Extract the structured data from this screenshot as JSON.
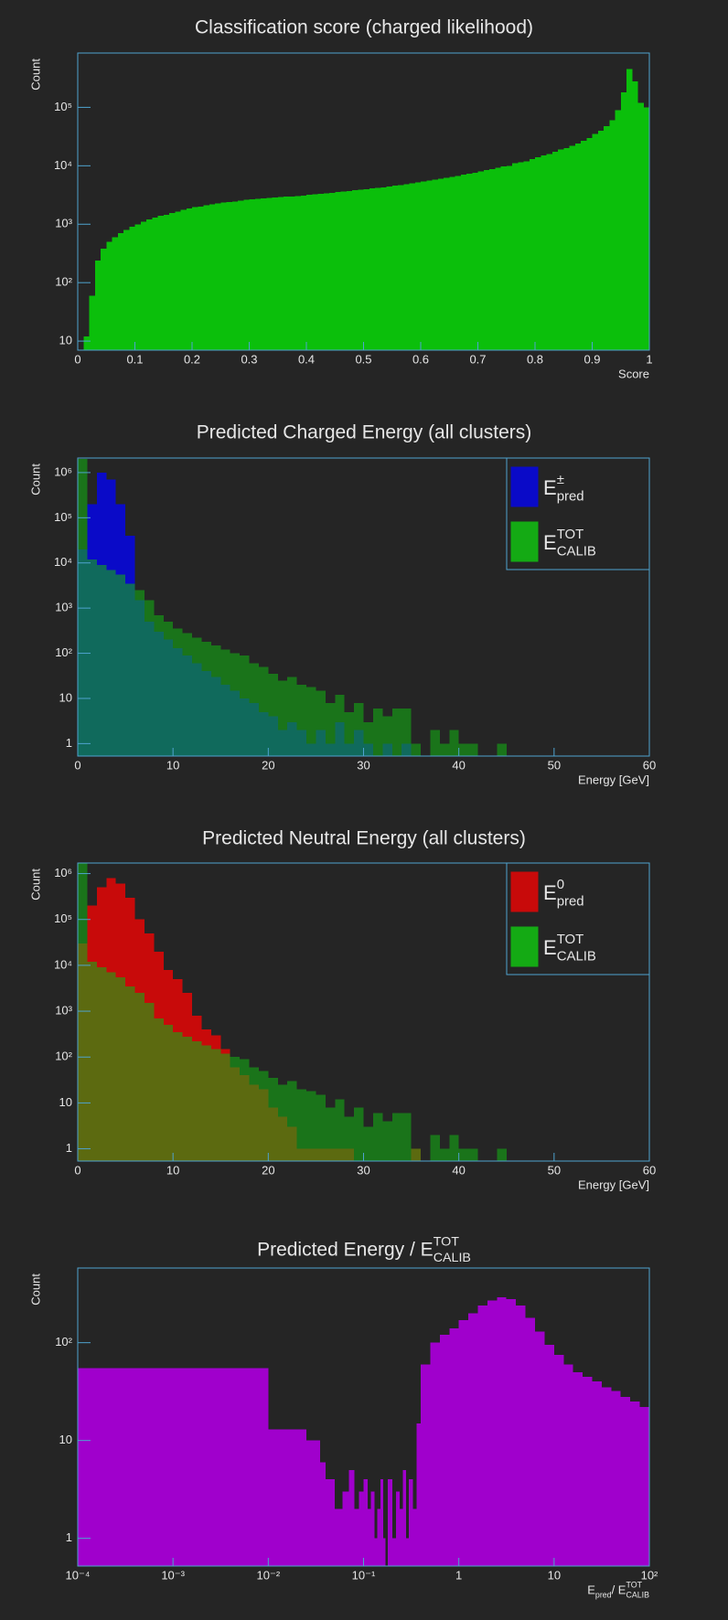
{
  "chart_data": [
    {
      "type": "histogram",
      "title": "Classification score (charged likelihood)",
      "xlabel": "Score",
      "ylabel": "Count",
      "ylog": true,
      "xlim": [
        0,
        1
      ],
      "ylim": [
        7,
        850000
      ],
      "xticks": [
        0,
        0.1,
        0.2,
        0.3,
        0.4,
        0.5,
        0.6,
        0.7,
        0.8,
        0.9,
        1
      ],
      "yticks": [
        10,
        {
          "value": 100,
          "label": "10²"
        },
        {
          "value": 1000,
          "label": "10³"
        },
        {
          "value": 10000,
          "label": "10⁴"
        },
        {
          "value": 100000,
          "label": "10⁵"
        }
      ],
      "color": "#0bbf0b",
      "bins": [
        0,
        0.01,
        0.02,
        0.03,
        0.04,
        0.05,
        0.06,
        0.07,
        0.08,
        0.09,
        0.1,
        0.11,
        0.12,
        0.13,
        0.14,
        0.15,
        0.16,
        0.17,
        0.18,
        0.19,
        0.2,
        0.21,
        0.22,
        0.23,
        0.24,
        0.25,
        0.26,
        0.27,
        0.28,
        0.29,
        0.3,
        0.31,
        0.32,
        0.33,
        0.34,
        0.35,
        0.36,
        0.37,
        0.38,
        0.39,
        0.4,
        0.41,
        0.42,
        0.43,
        0.44,
        0.45,
        0.46,
        0.47,
        0.48,
        0.49,
        0.5,
        0.51,
        0.52,
        0.53,
        0.54,
        0.55,
        0.56,
        0.57,
        0.58,
        0.59,
        0.6,
        0.61,
        0.62,
        0.63,
        0.64,
        0.65,
        0.66,
        0.67,
        0.68,
        0.69,
        0.7,
        0.71,
        0.72,
        0.73,
        0.74,
        0.75,
        0.76,
        0.77,
        0.78,
        0.79,
        0.8,
        0.81,
        0.82,
        0.83,
        0.84,
        0.85,
        0.86,
        0.87,
        0.88,
        0.89,
        0.9,
        0.91,
        0.92,
        0.93,
        0.94,
        0.95,
        0.96,
        0.97,
        0.98,
        0.99,
        1
      ],
      "values": [
        0,
        12,
        60,
        240,
        380,
        500,
        600,
        700,
        800,
        900,
        1000,
        1100,
        1200,
        1300,
        1400,
        1450,
        1550,
        1650,
        1750,
        1850,
        1950,
        2000,
        2100,
        2200,
        2250,
        2350,
        2400,
        2450,
        2550,
        2600,
        2650,
        2700,
        2750,
        2800,
        2850,
        2900,
        2950,
        3000,
        3050,
        3100,
        3200,
        3250,
        3300,
        3400,
        3450,
        3550,
        3600,
        3700,
        3800,
        3900,
        4000,
        4100,
        4200,
        4300,
        4450,
        4600,
        4700,
        4850,
        5000,
        5200,
        5400,
        5600,
        5800,
        6000,
        6200,
        6400,
        6700,
        7000,
        7300,
        7600,
        8000,
        8400,
        8800,
        9200,
        9700,
        10000,
        11000,
        11500,
        12000,
        13000,
        14000,
        15000,
        16000,
        17500,
        19000,
        20000,
        22000,
        24000,
        27000,
        30000,
        35000,
        40000,
        48000,
        60000,
        90000,
        180000,
        450000,
        280000,
        120000,
        100000
      ]
    },
    {
      "type": "histogram",
      "title": "Predicted Charged Energy (all clusters)",
      "xlabel": "Energy [GeV]",
      "ylabel": "Count",
      "ylog": true,
      "xlim": [
        0,
        60
      ],
      "ylim": [
        0.53,
        2100000
      ],
      "legend": "top-right",
      "xticks": [
        0,
        10,
        20,
        30,
        40,
        50,
        60
      ],
      "yticks": [
        1,
        10,
        {
          "value": 100,
          "label": "10²"
        },
        {
          "value": 1000,
          "label": "10³"
        },
        {
          "value": 10000,
          "label": "10⁴"
        },
        {
          "value": 100000,
          "label": "10⁵"
        },
        {
          "value": 1000000,
          "label": "10⁶"
        }
      ],
      "bins": [
        0,
        1,
        2,
        3,
        4,
        5,
        6,
        7,
        8,
        9,
        10,
        11,
        12,
        13,
        14,
        15,
        16,
        17,
        18,
        19,
        20,
        21,
        22,
        23,
        24,
        25,
        26,
        27,
        28,
        29,
        30,
        31,
        32,
        33,
        34,
        35,
        36,
        37,
        38,
        39,
        40,
        41,
        42,
        43,
        44,
        45,
        46,
        47,
        48,
        49,
        50,
        51,
        52,
        53,
        54,
        55,
        56,
        57,
        58,
        59,
        60
      ],
      "series": [
        {
          "name": "E",
          "name_sup": "±",
          "name_sub": "pred",
          "color": "#0a0ac8",
          "values": [
            20000,
            200000,
            1000000,
            700000,
            200000,
            40000,
            1500,
            500,
            300,
            200,
            130,
            90,
            60,
            40,
            30,
            20,
            15,
            10,
            8,
            5,
            4,
            2,
            3,
            2,
            1,
            2,
            1,
            3,
            1,
            2,
            1,
            0,
            1,
            0,
            1,
            0,
            0,
            0,
            0,
            0,
            0,
            0,
            0,
            0,
            0,
            0,
            0,
            0,
            0,
            0,
            0,
            0,
            0,
            0,
            0,
            0,
            0,
            0,
            0,
            0
          ]
        },
        {
          "name": "E",
          "name_sup": "TOT",
          "name_sub": "CALIB",
          "color": "#14aa14",
          "values": [
            2000000,
            12000,
            9000,
            7000,
            5500,
            3500,
            2500,
            1500,
            700,
            500,
            350,
            280,
            220,
            180,
            150,
            120,
            100,
            90,
            60,
            50,
            35,
            25,
            30,
            20,
            18,
            15,
            8,
            12,
            5,
            8,
            3,
            6,
            4,
            6,
            6,
            1,
            0,
            2,
            1,
            2,
            1,
            1,
            0,
            0,
            1,
            0,
            0,
            0,
            0,
            0,
            0,
            0,
            0,
            0,
            0,
            0,
            0,
            0,
            0,
            0
          ]
        }
      ]
    },
    {
      "type": "histogram",
      "title": "Predicted Neutral Energy (all clusters)",
      "xlabel": "Energy [GeV]",
      "ylabel": "Count",
      "ylog": true,
      "xlim": [
        0,
        60
      ],
      "ylim": [
        0.54,
        1700000
      ],
      "legend": "top-right",
      "xticks": [
        0,
        10,
        20,
        30,
        40,
        50,
        60
      ],
      "yticks": [
        1,
        10,
        {
          "value": 100,
          "label": "10²"
        },
        {
          "value": 1000,
          "label": "10³"
        },
        {
          "value": 10000,
          "label": "10⁴"
        },
        {
          "value": 100000,
          "label": "10⁵"
        },
        {
          "value": 1000000,
          "label": "10⁶"
        }
      ],
      "bins": [
        0,
        1,
        2,
        3,
        4,
        5,
        6,
        7,
        8,
        9,
        10,
        11,
        12,
        13,
        14,
        15,
        16,
        17,
        18,
        19,
        20,
        21,
        22,
        23,
        24,
        25,
        26,
        27,
        28,
        29,
        30,
        31,
        32,
        33,
        34,
        35,
        36,
        37,
        38,
        39,
        40,
        41,
        42,
        43,
        44,
        45,
        46,
        47,
        48,
        49,
        50,
        51,
        52,
        53,
        54,
        55,
        56,
        57,
        58,
        59,
        60
      ],
      "series": [
        {
          "name": "E",
          "name_sup": "0",
          "name_sub": "pred",
          "color": "#c80a0a",
          "values": [
            30000,
            200000,
            500000,
            800000,
            600000,
            300000,
            100000,
            50000,
            20000,
            8000,
            5000,
            2500,
            800,
            400,
            300,
            150,
            60,
            40,
            25,
            20,
            8,
            5,
            3,
            1,
            1,
            1,
            1,
            1,
            1,
            0,
            0,
            0,
            0,
            0,
            0,
            1,
            0,
            0,
            0,
            0,
            0,
            0,
            0,
            0,
            0,
            0,
            0,
            0,
            0,
            0,
            0,
            0,
            0,
            0,
            0,
            0,
            0,
            0,
            0,
            0
          ]
        },
        {
          "name": "E",
          "name_sup": "TOT",
          "name_sub": "CALIB",
          "color": "#14aa14",
          "values": [
            2000000,
            12000,
            9000,
            7000,
            5500,
            3500,
            2500,
            1500,
            700,
            500,
            350,
            280,
            220,
            180,
            150,
            120,
            100,
            90,
            60,
            50,
            35,
            25,
            30,
            20,
            18,
            15,
            8,
            12,
            5,
            8,
            3,
            6,
            4,
            6,
            6,
            1,
            0,
            2,
            1,
            2,
            1,
            1,
            0,
            0,
            1,
            0,
            0,
            0,
            0,
            0,
            0,
            0,
            0,
            0,
            0,
            0,
            0,
            0,
            0,
            0
          ]
        }
      ]
    },
    {
      "type": "histogram",
      "title": "Predicted Energy / E",
      "title_sup": "TOT",
      "title_sub": "CALIB",
      "xlabel": "E",
      "xlabel_sub": "pred",
      "xlabel_2": " / E",
      "xlabel_sup": "TOT",
      "xlabel_sub2": "CALIB",
      "ylabel": "Count",
      "xlog": true,
      "ylog": true,
      "xlim": [
        0.0001,
        100
      ],
      "ylim": [
        0.52,
        580
      ],
      "xticks": [
        {
          "value": 0.0001,
          "label": "10⁻⁴"
        },
        {
          "value": 0.001,
          "label": "10⁻³"
        },
        {
          "value": 0.01,
          "label": "10⁻²"
        },
        {
          "value": 0.1,
          "label": "10⁻¹"
        },
        1,
        10,
        {
          "value": 100,
          "label": "10²"
        }
      ],
      "yticks": [
        1,
        10,
        {
          "value": 100,
          "label": "10²"
        }
      ],
      "color": "#a000cc",
      "bins": [
        0.0001,
        0.01,
        0.02,
        0.025,
        0.03,
        0.035,
        0.04,
        0.05,
        0.06,
        0.07,
        0.08,
        0.09,
        0.1,
        0.11,
        0.12,
        0.13,
        0.14,
        0.15,
        0.16,
        0.17,
        0.18,
        0.2,
        0.22,
        0.24,
        0.26,
        0.28,
        0.3,
        0.33,
        0.36,
        0.4,
        0.5,
        0.63,
        0.8,
        1,
        1.26,
        1.58,
        2,
        2.51,
        3.16,
        3.98,
        5.01,
        6.31,
        7.94,
        10,
        12.6,
        15.8,
        20,
        25.1,
        31.6,
        39.8,
        50.1,
        63.1,
        79.4,
        100
      ],
      "values": [
        55,
        13,
        13,
        10,
        10,
        6,
        4,
        2,
        3,
        5,
        2,
        3,
        4,
        2,
        3,
        1,
        2,
        4,
        1,
        0,
        4,
        1,
        3,
        2,
        5,
        1,
        4,
        2,
        15,
        60,
        100,
        120,
        140,
        170,
        200,
        240,
        270,
        290,
        280,
        240,
        180,
        130,
        95,
        75,
        60,
        50,
        45,
        40,
        35,
        32,
        28,
        25,
        22
      ]
    }
  ]
}
